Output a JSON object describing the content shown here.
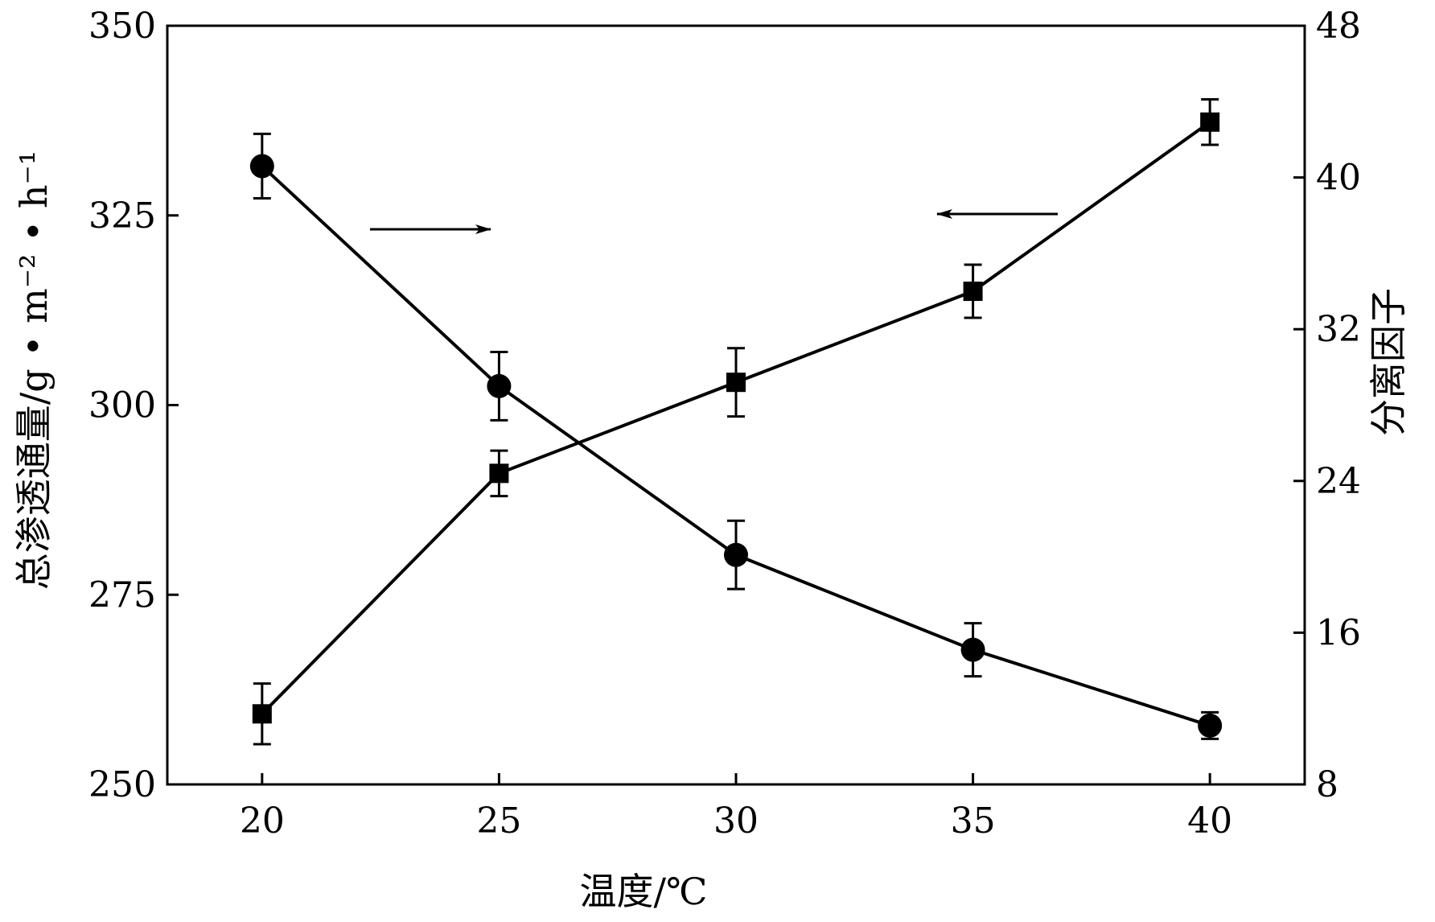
{
  "chart_data": {
    "type": "line",
    "x": [
      20,
      25,
      30,
      35,
      40
    ],
    "xlabel": "温度/℃",
    "ylabel_left": "总渗透通量/g • m⁻² • h⁻¹",
    "ylabel_right": "分离因子",
    "xlim": [
      18,
      42
    ],
    "ylim_left": [
      250,
      350
    ],
    "ylim_right": [
      8,
      48
    ],
    "xticks": [
      "20",
      "25",
      "30",
      "35",
      "40"
    ],
    "yticks_left": [
      "250",
      "275",
      "300",
      "325",
      "350"
    ],
    "yticks_right": [
      "8",
      "16",
      "24",
      "32",
      "40",
      "48"
    ],
    "grid": false,
    "series": [
      {
        "marker": "square",
        "axis": "left",
        "values": [
          259.3,
          291.0,
          303.0,
          315.0,
          337.3
        ],
        "errors": [
          4.0,
          3.0,
          4.5,
          3.5,
          3.0
        ]
      },
      {
        "marker": "circle",
        "axis": "right",
        "values": [
          40.6,
          29.0,
          20.1,
          15.1,
          11.1
        ],
        "errors": [
          1.7,
          1.8,
          1.8,
          1.4,
          0.7
        ]
      }
    ],
    "annotations": [
      {
        "type": "arrow",
        "direction": "right",
        "series_marker": "circle"
      },
      {
        "type": "arrow",
        "direction": "left",
        "series_marker": "square"
      }
    ]
  }
}
